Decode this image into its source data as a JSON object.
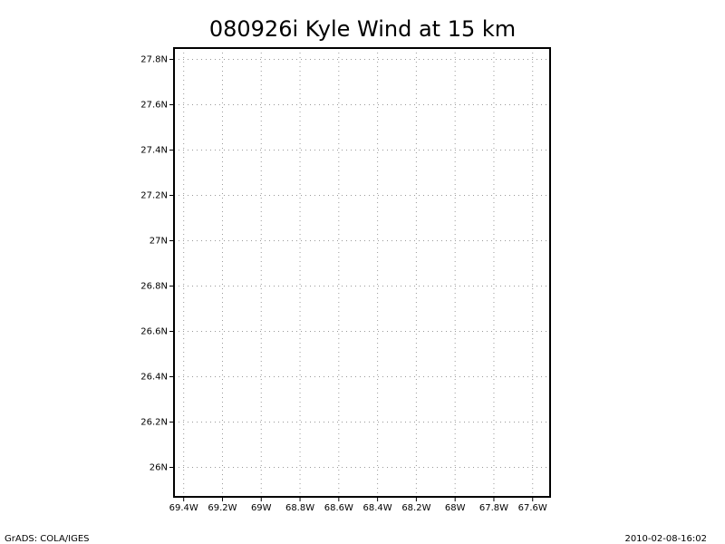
{
  "chart_data": {
    "type": "map",
    "title": "080926i Kyle Wind at 15 km",
    "xlim": [
      -69.45,
      -67.51
    ],
    "ylim": [
      25.87,
      27.85
    ],
    "xticks": [
      {
        "value": -69.4,
        "label": "69.4W"
      },
      {
        "value": -69.2,
        "label": "69.2W"
      },
      {
        "value": -69,
        "label": "69W"
      },
      {
        "value": -68.8,
        "label": "68.8W"
      },
      {
        "value": -68.6,
        "label": "68.6W"
      },
      {
        "value": -68.4,
        "label": "68.4W"
      },
      {
        "value": -68.2,
        "label": "68.2W"
      },
      {
        "value": -68,
        "label": "68W"
      },
      {
        "value": -67.8,
        "label": "67.8W"
      },
      {
        "value": -67.6,
        "label": "67.6W"
      }
    ],
    "yticks": [
      {
        "value": 26,
        "label": "26N"
      },
      {
        "value": 26.2,
        "label": "26.2N"
      },
      {
        "value": 26.4,
        "label": "26.4N"
      },
      {
        "value": 26.6,
        "label": "26.6N"
      },
      {
        "value": 26.8,
        "label": "26.8N"
      },
      {
        "value": 27,
        "label": "27N"
      },
      {
        "value": 27.2,
        "label": "27.2N"
      },
      {
        "value": 27.4,
        "label": "27.4N"
      },
      {
        "value": 27.6,
        "label": "27.6N"
      },
      {
        "value": 27.8,
        "label": "27.8N"
      }
    ],
    "grid": true,
    "grid_color": "#999999",
    "credit": "GrADS: COLA/IGES",
    "timestamp": "2010-02-08-16:02"
  }
}
